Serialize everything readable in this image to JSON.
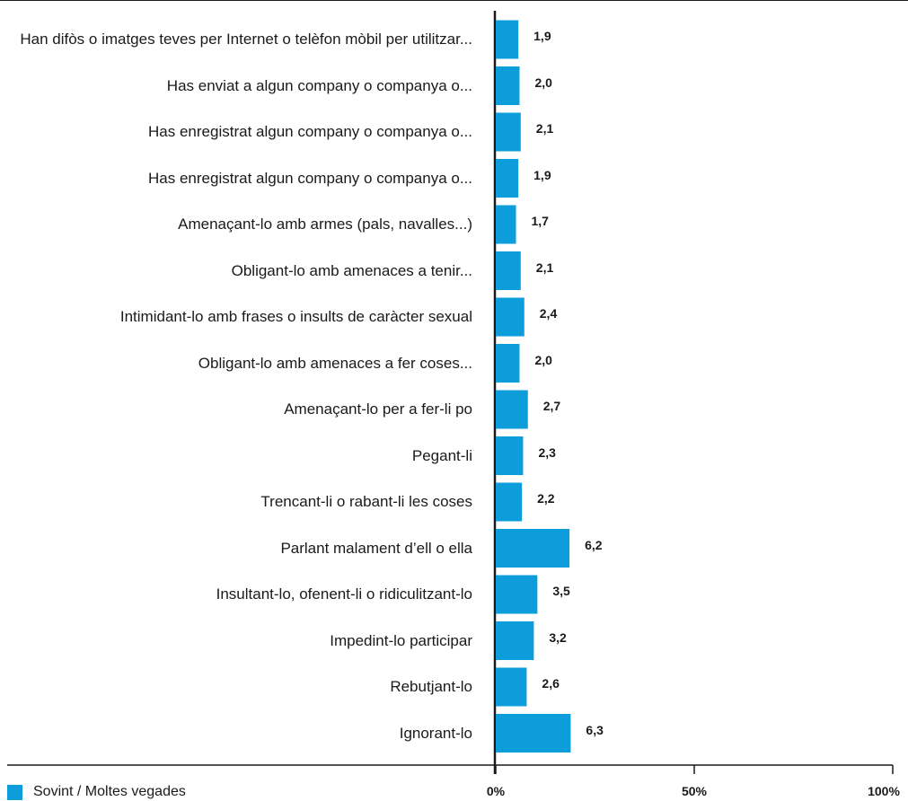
{
  "chart_data": {
    "type": "bar",
    "orientation": "horizontal",
    "categories": [
      "Han difòs o imatges teves per Internet o telèfon mòbil per utilitzar...",
      "Has enviat a algun company o companya o...",
      "Has enregistrat algun company o companya o...",
      "Has enregistrat algun company o companya o...",
      "Amenaçant-lo amb armes (pals, navalles...)",
      "Obligant-lo amb amenaces a tenir...",
      "Intimidant-lo amb frases o insults de caràcter sexual",
      "Obligant-lo amb amenaces a fer coses...",
      "Amenaçant-lo per a fer-li po",
      "Pegant-li",
      "Trencant-li o rabant-li les coses",
      "Parlant malament d’ell o ella",
      "Insultant-lo, ofenent-li o ridiculitzant-lo",
      "Impedint-lo participar",
      "Rebutjant-lo",
      "Ignorant-lo"
    ],
    "series": [
      {
        "name": "Sovint / Moltes vegades",
        "color": "#0d9ddb",
        "values": [
          1.9,
          2.0,
          2.1,
          1.9,
          1.7,
          2.1,
          2.4,
          2.0,
          2.7,
          2.3,
          2.2,
          6.2,
          3.5,
          3.2,
          2.6,
          6.3
        ],
        "value_labels": [
          "1,9",
          "2,0",
          "2,1",
          "1,9",
          "1,7",
          "2,1",
          "2,4",
          "2,0",
          "2,7",
          "2,3",
          "2,2",
          "6,2",
          "3,5",
          "3,2",
          "2,6",
          "6,3"
        ]
      }
    ],
    "xlim": [
      0,
      100
    ],
    "x_ticks": [
      {
        "value": 0,
        "label": "0%"
      },
      {
        "value": 50,
        "label": "50%"
      },
      {
        "value": 100,
        "label": "100%"
      }
    ],
    "legend": {
      "label": "Sovint / Moltes vegades",
      "position": "bottom-left"
    },
    "grid": false,
    "title": "",
    "xlabel": "",
    "ylabel": ""
  }
}
